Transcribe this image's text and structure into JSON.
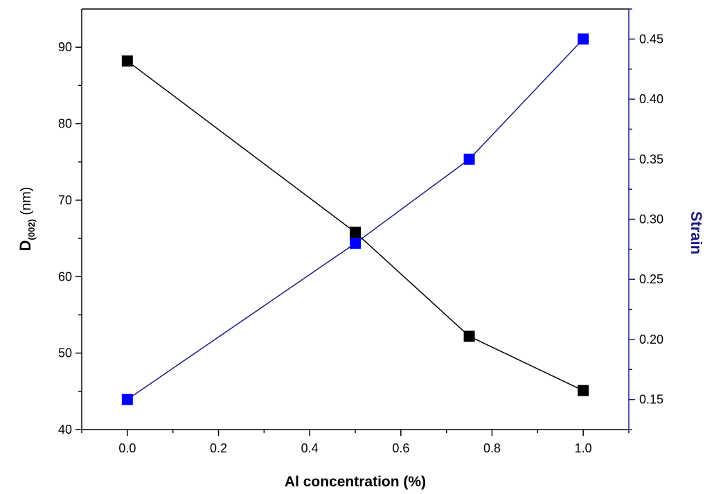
{
  "chart_data": {
    "type": "line",
    "xlabel": "Al concentration (%)",
    "ylabel_left": {
      "main": "D",
      "sub": "(002)",
      "unit": " (nm)"
    },
    "ylabel_right": "Strain",
    "x_ticks": [
      "0.0",
      "0.2",
      "0.4",
      "0.6",
      "0.8",
      "1.0"
    ],
    "y_left_ticks": [
      "40",
      "50",
      "60",
      "70",
      "80",
      "90"
    ],
    "y_right_ticks": [
      "0.15",
      "0.20",
      "0.25",
      "0.30",
      "0.35",
      "0.40",
      "0.45"
    ],
    "xlim": [
      -0.1,
      1.1
    ],
    "ylim_left": [
      40,
      95
    ],
    "ylim_right": [
      0.125,
      0.475
    ],
    "grid": false,
    "series": [
      {
        "axis": "left",
        "color": "#000000",
        "marker": "square",
        "x": [
          0.0,
          0.5,
          0.75,
          1.0
        ],
        "y": [
          88.2,
          65.8,
          52.2,
          45.1
        ]
      },
      {
        "axis": "right",
        "color": "#0000ff",
        "line_color": "#1a1a80",
        "marker": "square",
        "x": [
          0.0,
          0.5,
          0.75,
          1.0
        ],
        "y": [
          0.15,
          0.28,
          0.35,
          0.45
        ]
      }
    ],
    "colors": {
      "left_axis": "#000000",
      "right_axis": "#1a1a80"
    }
  }
}
